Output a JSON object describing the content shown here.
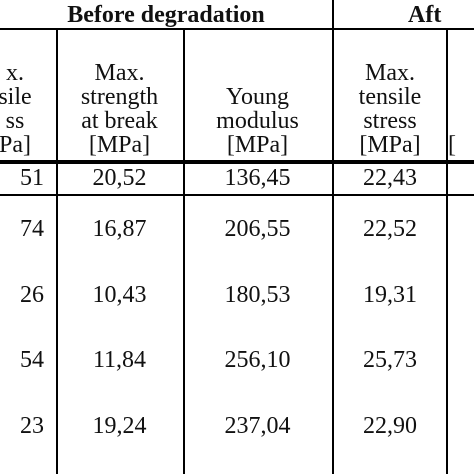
{
  "table": {
    "group_headers": {
      "before": "Before degradation",
      "after": "Aft"
    },
    "columns": [
      {
        "lines": [
          "x.",
          "sile",
          "ss",
          "Pa]"
        ]
      },
      {
        "lines": [
          "Max.",
          "strength",
          "at break",
          "[MPa]"
        ]
      },
      {
        "lines": [
          "Young",
          "modulus",
          "[MPa]"
        ]
      },
      {
        "lines": [
          "Max.",
          "tensile",
          "stress",
          "[MPa]"
        ]
      },
      {
        "lines": [
          "",
          "",
          "",
          "["
        ]
      }
    ],
    "rows": [
      [
        "51",
        "20,52",
        "136,45",
        "22,43",
        ""
      ],
      [
        "74",
        "16,87",
        "206,55",
        "22,52",
        ""
      ],
      [
        "26",
        "10,43",
        "180,53",
        "19,31",
        ""
      ],
      [
        "54",
        "11,84",
        "256,10",
        "25,73",
        ""
      ],
      [
        "23",
        "19,24",
        "237,04",
        "22,90",
        ""
      ]
    ]
  }
}
